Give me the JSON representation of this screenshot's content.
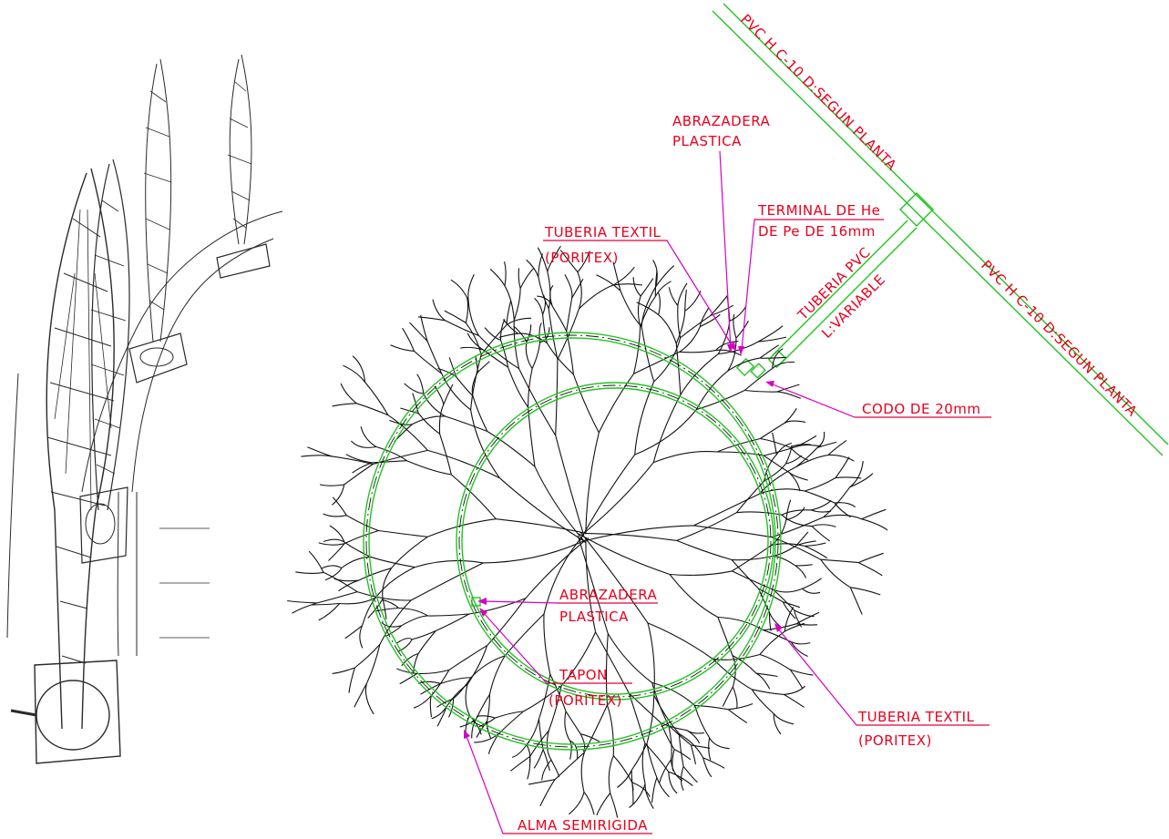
{
  "labels": {
    "main_pipe_upper": "PVC H C-10 D:SEGUN PLANTA",
    "main_pipe_lower": "PVC H C-10 D:SEGUN PLANTA",
    "abrazadera_top_1": "ABRAZADERA",
    "abrazadera_top_2": "PLASTICA",
    "terminal_1": "TERMINAL DE He",
    "terminal_2": "DE Pe DE 16mm",
    "tuberia_textil_top_1": "TUBERIA TEXTIL",
    "tuberia_textil_top_2": "(PORITEX)",
    "tuberia_pvc_1": "TUBERIA PVC",
    "tuberia_pvc_2": "L:VARIABLE",
    "codo": "CODO DE 20mm",
    "abrazadera_mid_1": "ABRAZADERA",
    "abrazadera_mid_2": "PLASTICA",
    "tapon_1": "TAPON",
    "tapon_2": "(PORITEX)",
    "tuberia_textil_bottom_1": "TUBERIA TEXTIL",
    "tuberia_textil_bottom_2": "(PORITEX)",
    "alma": "ALMA SEMIRIGIDA"
  },
  "colors": {
    "label": "#e8001c",
    "leader": "#d400c8",
    "pipe": "#22c322",
    "roots": "#111111"
  }
}
